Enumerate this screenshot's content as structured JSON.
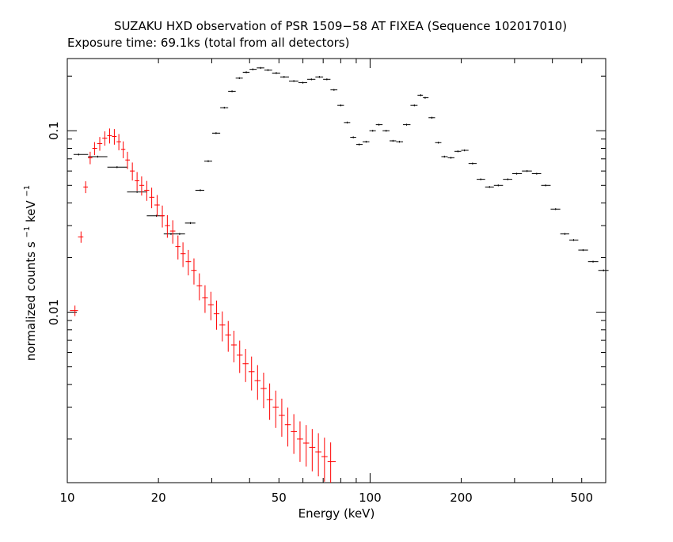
{
  "chart_data": {
    "type": "scatter",
    "title": "SUZAKU HXD observation of PSR 1509−58 AT FIXEA (Sequence 102017010)",
    "subtitle": "Exposure time: 69.1ks (total from all detectors)",
    "xlabel": "Energy (keV)",
    "ylabel_main": "normalized counts s",
    "ylabel_sup1": "−1",
    "ylabel_mid": " keV",
    "ylabel_sup2": "−1",
    "xscale": "log",
    "yscale": "log",
    "xlim": [
      10,
      600
    ],
    "ylim": [
      0.00115,
      0.25
    ],
    "x_ticks": [
      {
        "v": 10,
        "label": "10"
      },
      {
        "v": 20,
        "label": "20"
      },
      {
        "v": 50,
        "label": "50"
      },
      {
        "v": 100,
        "label": "100"
      },
      {
        "v": 200,
        "label": "200"
      },
      {
        "v": 500,
        "label": "500"
      }
    ],
    "y_ticks": [
      {
        "v": 0.1,
        "label": "0.1"
      },
      {
        "v": 0.01,
        "label": "0.01"
      }
    ],
    "colors": {
      "series_black": "#000000",
      "series_red": "#ff0000"
    },
    "series": [
      {
        "color": "#000000",
        "points": [
          [
            10.9,
            0.074
          ],
          [
            12.6,
            0.072
          ],
          [
            14.6,
            0.063
          ],
          [
            17.0,
            0.046
          ],
          [
            19.7,
            0.034
          ],
          [
            22.0,
            0.027
          ],
          [
            23.5,
            0.027
          ],
          [
            25.5,
            0.031
          ],
          [
            27.5,
            0.047
          ],
          [
            29.2,
            0.068
          ],
          [
            31.0,
            0.097
          ],
          [
            33.0,
            0.134
          ],
          [
            35.0,
            0.165
          ],
          [
            37.0,
            0.195
          ],
          [
            39.0,
            0.21
          ],
          [
            41.0,
            0.218
          ],
          [
            43.5,
            0.222
          ],
          [
            46.0,
            0.216
          ],
          [
            49.0,
            0.208
          ],
          [
            52.0,
            0.198
          ],
          [
            56.0,
            0.188
          ],
          [
            60.0,
            0.184
          ],
          [
            64.0,
            0.192
          ],
          [
            68.0,
            0.198
          ],
          [
            72.0,
            0.192
          ],
          [
            76.0,
            0.168
          ],
          [
            80.0,
            0.138
          ],
          [
            84.0,
            0.111
          ],
          [
            88.0,
            0.092
          ],
          [
            92.0,
            0.084
          ],
          [
            97.0,
            0.087
          ],
          [
            102.0,
            0.1
          ],
          [
            107.0,
            0.108
          ],
          [
            113.0,
            0.1
          ],
          [
            119.0,
            0.088
          ],
          [
            125.0,
            0.087
          ],
          [
            132.0,
            0.108
          ],
          [
            140.0,
            0.138
          ],
          [
            147.0,
            0.157
          ],
          [
            152.0,
            0.152
          ],
          [
            160.0,
            0.118
          ],
          [
            168.0,
            0.086
          ],
          [
            176.0,
            0.072
          ],
          [
            185.0,
            0.071
          ],
          [
            195.0,
            0.077
          ],
          [
            205.0,
            0.078
          ],
          [
            218.0,
            0.066
          ],
          [
            232.0,
            0.054
          ],
          [
            248.0,
            0.049
          ],
          [
            265.0,
            0.05
          ],
          [
            285.0,
            0.054
          ],
          [
            305.0,
            0.058
          ],
          [
            330.0,
            0.06
          ],
          [
            355.0,
            0.058
          ],
          [
            380.0,
            0.05
          ],
          [
            410.0,
            0.037
          ],
          [
            440.0,
            0.027
          ],
          [
            470.0,
            0.025
          ],
          [
            505.0,
            0.022
          ],
          [
            545.0,
            0.019
          ],
          [
            590.0,
            0.017
          ]
        ]
      },
      {
        "color": "#ff0000",
        "points": [
          [
            10.6,
            0.0102
          ],
          [
            11.1,
            0.026
          ],
          [
            11.5,
            0.049
          ],
          [
            11.9,
            0.071
          ],
          [
            12.3,
            0.08
          ],
          [
            12.8,
            0.085
          ],
          [
            13.3,
            0.091
          ],
          [
            13.8,
            0.094
          ],
          [
            14.3,
            0.093
          ],
          [
            14.8,
            0.087
          ],
          [
            15.3,
            0.079
          ],
          [
            15.8,
            0.069
          ],
          [
            16.4,
            0.06
          ],
          [
            17.0,
            0.053
          ],
          [
            17.6,
            0.05
          ],
          [
            18.3,
            0.047
          ],
          [
            19.0,
            0.043
          ],
          [
            19.8,
            0.039
          ],
          [
            20.6,
            0.034
          ],
          [
            21.4,
            0.03
          ],
          [
            22.3,
            0.028
          ],
          [
            23.2,
            0.023
          ],
          [
            24.1,
            0.021
          ],
          [
            25.1,
            0.019
          ],
          [
            26.2,
            0.017
          ],
          [
            27.3,
            0.014
          ],
          [
            28.5,
            0.012
          ],
          [
            29.8,
            0.011
          ],
          [
            31.1,
            0.0098
          ],
          [
            32.5,
            0.0085
          ],
          [
            34.0,
            0.0075
          ],
          [
            35.5,
            0.0066
          ],
          [
            37.1,
            0.0058
          ],
          [
            38.8,
            0.0052
          ],
          [
            40.6,
            0.0047
          ],
          [
            42.5,
            0.0042
          ],
          [
            44.5,
            0.0038
          ],
          [
            46.6,
            0.0033
          ],
          [
            48.8,
            0.003
          ],
          [
            51.1,
            0.0027
          ],
          [
            53.5,
            0.0024
          ],
          [
            56.0,
            0.0022
          ],
          [
            58.7,
            0.002
          ],
          [
            61.5,
            0.0019
          ],
          [
            64.4,
            0.0018
          ],
          [
            67.5,
            0.0017
          ],
          [
            70.7,
            0.0016
          ],
          [
            74.1,
            0.0015
          ]
        ]
      }
    ]
  }
}
